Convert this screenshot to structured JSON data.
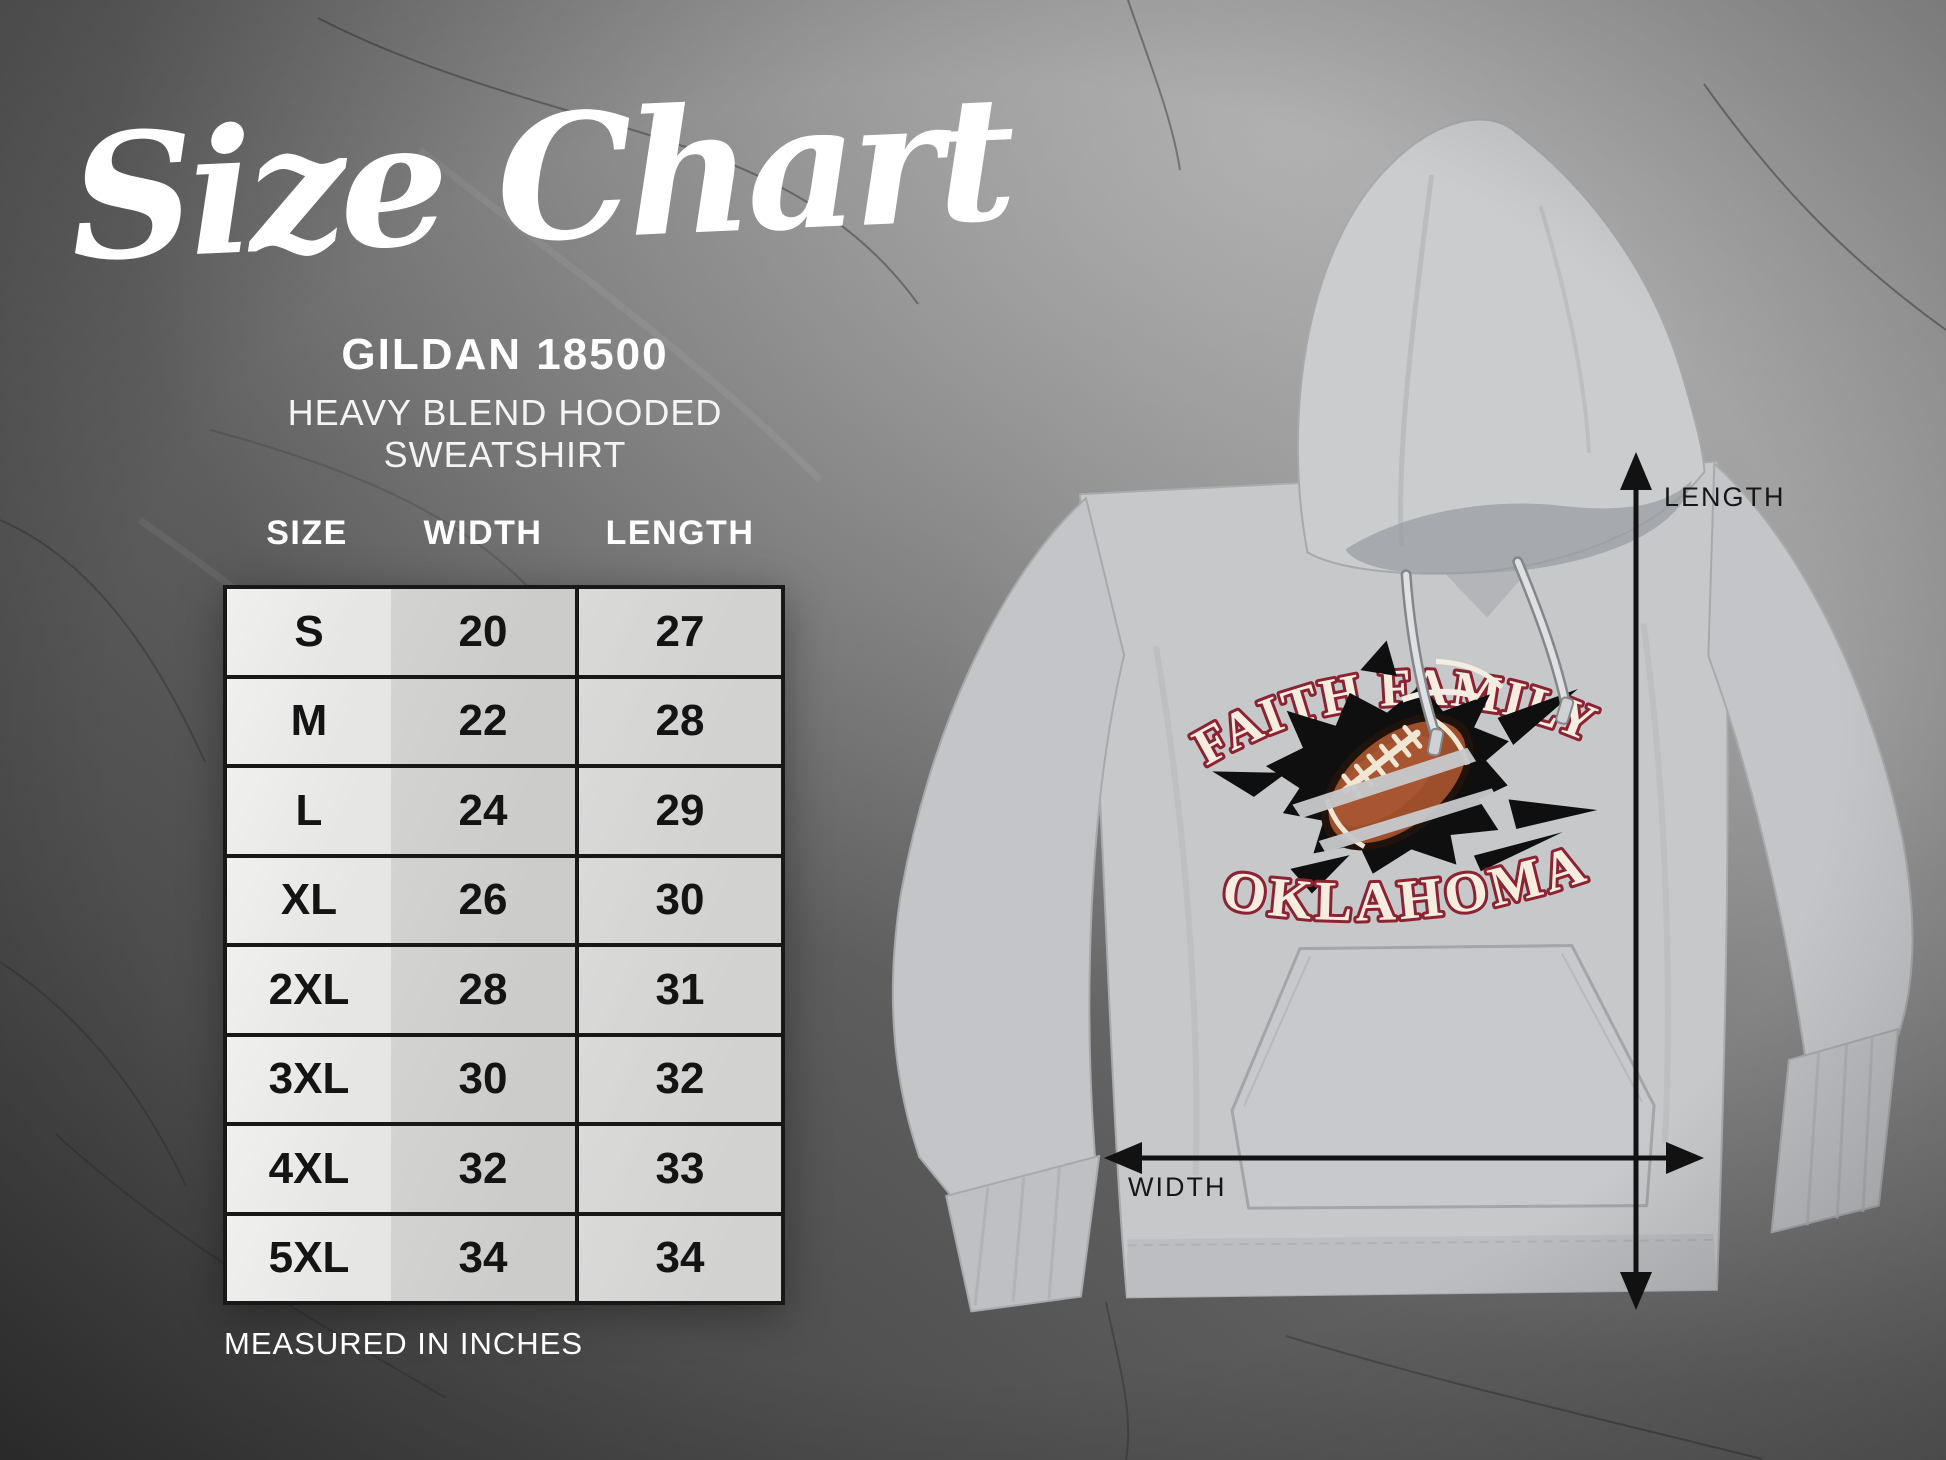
{
  "title": "Size Chart",
  "product": {
    "name": "GILDAN 18500",
    "description": "HEAVY BLEND HOODED SWEATSHIRT"
  },
  "size_table": {
    "headers": [
      "SIZE",
      "WIDTH",
      "LENGTH"
    ],
    "rows": [
      [
        "S",
        "20",
        "27"
      ],
      [
        "M",
        "22",
        "28"
      ],
      [
        "L",
        "24",
        "29"
      ],
      [
        "XL",
        "26",
        "30"
      ],
      [
        "2XL",
        "28",
        "31"
      ],
      [
        "3XL",
        "30",
        "32"
      ],
      [
        "4XL",
        "32",
        "33"
      ],
      [
        "5XL",
        "34",
        "34"
      ]
    ],
    "note": "MEASURED IN INCHES"
  },
  "hoodie_design": {
    "arc_text": "FAITH FAMILY",
    "bottom_text": "OKLAHOMA",
    "graphic": "torn-football-graphic"
  },
  "dimension_labels": {
    "length": "LENGTH",
    "width": "WIDTH"
  },
  "colors": {
    "design_maroon": "#8b2332",
    "design_cream": "#f5eee0",
    "football_brown": "#9d4e2b",
    "hoodie_gray": "#c7c8ca",
    "label_ink": "#161616",
    "text_white": "#ffffff"
  },
  "chart_data": {
    "type": "table",
    "title": "Gildan 18500 Heavy Blend Hooded Sweatshirt size chart",
    "units": "inches",
    "columns": [
      "SIZE",
      "WIDTH",
      "LENGTH"
    ],
    "rows": [
      [
        "S",
        20,
        27
      ],
      [
        "M",
        22,
        28
      ],
      [
        "L",
        24,
        29
      ],
      [
        "XL",
        26,
        30
      ],
      [
        "2XL",
        28,
        31
      ],
      [
        "3XL",
        30,
        32
      ],
      [
        "4XL",
        32,
        33
      ],
      [
        "5XL",
        34,
        34
      ]
    ]
  }
}
